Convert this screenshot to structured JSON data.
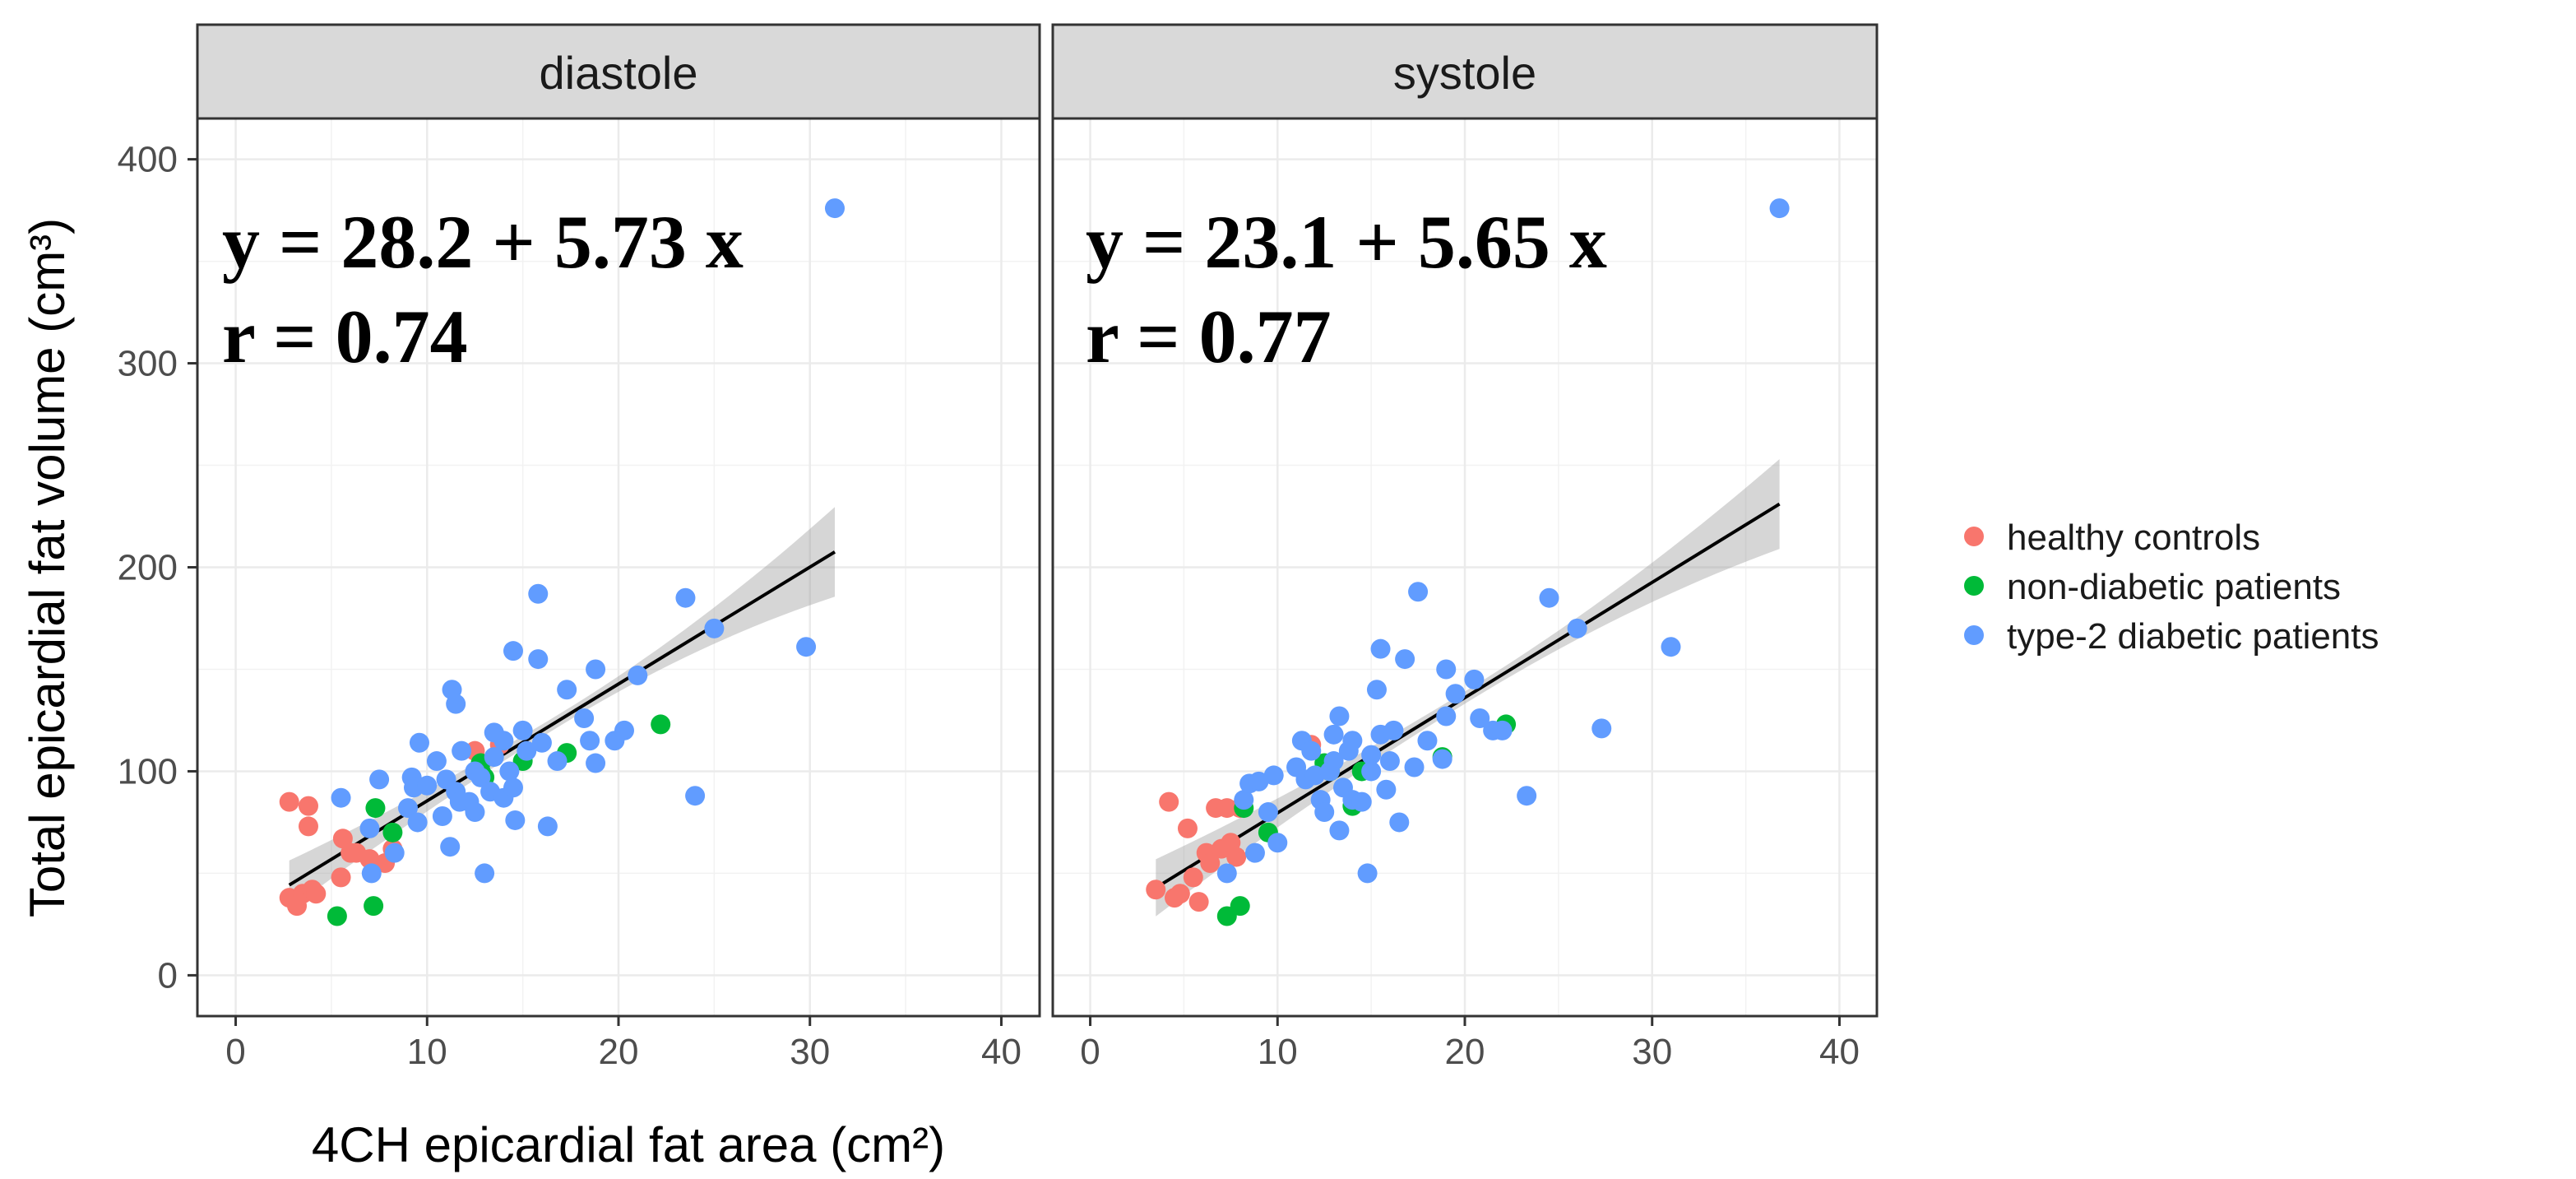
{
  "chart_data": {
    "type": "scatter",
    "xlabel": "4CH epicardial fat area (cm²)",
    "ylabel": "Total epicardial fat volume (cm³)",
    "xlim": [
      -2,
      42
    ],
    "ylim": [
      -20,
      420
    ],
    "x_ticks": [
      0,
      10,
      20,
      30,
      40
    ],
    "y_ticks": [
      0,
      100,
      200,
      300,
      400
    ],
    "grid": true,
    "legend_position": "right",
    "series_colors": {
      "healthy controls": "#F8766D",
      "non-diabetic patients": "#00BA38",
      "type-2 diabetic patients": "#619CFF"
    },
    "legend": [
      "healthy controls",
      "non-diabetic patients",
      "type-2 diabetic patients"
    ],
    "panels": [
      {
        "title": "diastole",
        "equation": "y = 28.2 + 5.73 x",
        "r_label": "r = 0.74",
        "fit": {
          "intercept": 28.2,
          "slope": 5.73,
          "x_range": [
            2.8,
            31.3
          ],
          "ci_start": 12,
          "ci_end": 22
        },
        "series": [
          {
            "name": "healthy controls",
            "points": [
              [
                2.8,
                85
              ],
              [
                2.8,
                38
              ],
              [
                3.2,
                34
              ],
              [
                3.5,
                40
              ],
              [
                3.8,
                83
              ],
              [
                3.8,
                73
              ],
              [
                4,
                42
              ],
              [
                4.2,
                40
              ],
              [
                5.5,
                48
              ],
              [
                5.6,
                67
              ],
              [
                6,
                60
              ],
              [
                6.3,
                60
              ],
              [
                7,
                57
              ],
              [
                7.8,
                55
              ],
              [
                8.2,
                62
              ],
              [
                12.5,
                110
              ],
              [
                13.8,
                113
              ]
            ]
          },
          {
            "name": "non-diabetic patients",
            "points": [
              [
                5.3,
                29
              ],
              [
                7.2,
                34
              ],
              [
                7.3,
                82
              ],
              [
                8.2,
                70
              ],
              [
                12.8,
                100
              ],
              [
                12.8,
                104
              ],
              [
                13,
                97
              ],
              [
                15,
                105
              ],
              [
                17.3,
                109
              ],
              [
                22.2,
                123
              ]
            ]
          },
          {
            "name": "type-2 diabetic patients",
            "points": [
              [
                5.5,
                87
              ],
              [
                7,
                72
              ],
              [
                7.1,
                50
              ],
              [
                7.5,
                96
              ],
              [
                8.3,
                60
              ],
              [
                9,
                82
              ],
              [
                9.2,
                97
              ],
              [
                9.3,
                92
              ],
              [
                9.5,
                75
              ],
              [
                9.6,
                114
              ],
              [
                10,
                93
              ],
              [
                10.5,
                105
              ],
              [
                10.8,
                78
              ],
              [
                11,
                96
              ],
              [
                11.2,
                63
              ],
              [
                11.3,
                140
              ],
              [
                11.5,
                133
              ],
              [
                11.5,
                90
              ],
              [
                11.7,
                85
              ],
              [
                11.8,
                110
              ],
              [
                12.2,
                85
              ],
              [
                12.5,
                80
              ],
              [
                12.5,
                100
              ],
              [
                12.8,
                97
              ],
              [
                13,
                50
              ],
              [
                13.3,
                90
              ],
              [
                13.5,
                107
              ],
              [
                13.5,
                119
              ],
              [
                14,
                115
              ],
              [
                14,
                87
              ],
              [
                14.3,
                100
              ],
              [
                14.5,
                92
              ],
              [
                14.5,
                159
              ],
              [
                14.6,
                76
              ],
              [
                15,
                120
              ],
              [
                15.2,
                110
              ],
              [
                15.8,
                187
              ],
              [
                15.8,
                155
              ],
              [
                16,
                114
              ],
              [
                16.3,
                73
              ],
              [
                16.8,
                105
              ],
              [
                17.3,
                140
              ],
              [
                18.2,
                126
              ],
              [
                18.5,
                115
              ],
              [
                18.8,
                104
              ],
              [
                18.8,
                150
              ],
              [
                19.8,
                115
              ],
              [
                20.3,
                120
              ],
              [
                21,
                147
              ],
              [
                23.5,
                185
              ],
              [
                24,
                88
              ],
              [
                25,
                170
              ],
              [
                29.8,
                161
              ],
              [
                31.3,
                376
              ]
            ]
          }
        ]
      },
      {
        "title": "systole",
        "equation": "y = 23.1 + 5.65 x",
        "r_label": "r = 0.77",
        "fit": {
          "intercept": 23.1,
          "slope": 5.65,
          "x_range": [
            3.5,
            36.8
          ],
          "ci_start": 14,
          "ci_end": 22
        },
        "series": [
          {
            "name": "healthy controls",
            "points": [
              [
                3.5,
                42
              ],
              [
                4.2,
                85
              ],
              [
                4.5,
                38
              ],
              [
                4.8,
                40
              ],
              [
                5.2,
                72
              ],
              [
                5.5,
                48
              ],
              [
                5.8,
                36
              ],
              [
                6.2,
                60
              ],
              [
                6.4,
                55
              ],
              [
                6.7,
                82
              ],
              [
                7,
                62
              ],
              [
                7.3,
                82
              ],
              [
                7.5,
                65
              ],
              [
                7.8,
                58
              ],
              [
                8,
                82
              ],
              [
                11.8,
                113
              ]
            ]
          },
          {
            "name": "non-diabetic patients",
            "points": [
              [
                7.3,
                29
              ],
              [
                8,
                34
              ],
              [
                8.2,
                82
              ],
              [
                9.5,
                70
              ],
              [
                12.5,
                104
              ],
              [
                12.8,
                100
              ],
              [
                14,
                83
              ],
              [
                14.5,
                100
              ],
              [
                18.8,
                107
              ],
              [
                22.2,
                123
              ]
            ]
          },
          {
            "name": "type-2 diabetic patients",
            "points": [
              [
                7.3,
                50
              ],
              [
                8.2,
                86
              ],
              [
                8.5,
                94
              ],
              [
                8.8,
                60
              ],
              [
                9,
                95
              ],
              [
                9.5,
                80
              ],
              [
                9.8,
                98
              ],
              [
                10,
                65
              ],
              [
                11,
                102
              ],
              [
                11.3,
                115
              ],
              [
                11.5,
                96
              ],
              [
                11.8,
                110
              ],
              [
                12,
                98
              ],
              [
                12.3,
                86
              ],
              [
                12.5,
                80
              ],
              [
                12.8,
                100
              ],
              [
                13,
                105
              ],
              [
                13,
                118
              ],
              [
                13.3,
                71
              ],
              [
                13.3,
                127
              ],
              [
                13.5,
                92
              ],
              [
                13.8,
                110
              ],
              [
                14,
                115
              ],
              [
                14,
                86
              ],
              [
                14.5,
                85
              ],
              [
                14.8,
                50
              ],
              [
                15,
                108
              ],
              [
                15,
                100
              ],
              [
                15.3,
                140
              ],
              [
                15.5,
                160
              ],
              [
                15.5,
                118
              ],
              [
                15.8,
                91
              ],
              [
                16,
                105
              ],
              [
                16.2,
                120
              ],
              [
                16.5,
                75
              ],
              [
                16.8,
                155
              ],
              [
                17.3,
                102
              ],
              [
                17.5,
                188
              ],
              [
                18,
                115
              ],
              [
                18.8,
                106
              ],
              [
                19,
                127
              ],
              [
                19,
                150
              ],
              [
                19.5,
                138
              ],
              [
                20.5,
                145
              ],
              [
                20.8,
                126
              ],
              [
                21.5,
                120
              ],
              [
                22,
                120
              ],
              [
                23.3,
                88
              ],
              [
                24.5,
                185
              ],
              [
                26,
                170
              ],
              [
                27.3,
                121
              ],
              [
                31,
                161
              ],
              [
                36.8,
                376
              ]
            ]
          }
        ]
      }
    ]
  }
}
